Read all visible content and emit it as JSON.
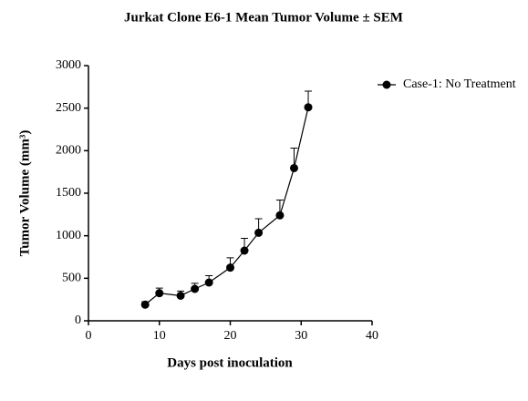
{
  "chart_data": {
    "type": "line",
    "title": "Jurkat Clone E6-1 Mean Tumor Volume ± SEM",
    "x_label": "Days post inoculation",
    "y_label": "Tumor Volume (mm³)",
    "x": [
      8,
      10,
      13,
      15,
      17,
      20,
      22,
      24,
      27,
      29,
      31
    ],
    "series": [
      {
        "name": "Case-1: No Treatment",
        "color": "#000000",
        "values": [
          190,
          325,
          295,
          375,
          450,
          625,
          825,
          1035,
          1240,
          1795,
          2510
        ],
        "errors": [
          35,
          60,
          55,
          65,
          80,
          115,
          145,
          165,
          180,
          235,
          190
        ]
      }
    ],
    "xlim": [
      0,
      40
    ],
    "xticks": [
      0,
      10,
      20,
      30,
      40
    ],
    "ylim": [
      0,
      3000
    ],
    "yticks": [
      0,
      500,
      1000,
      1500,
      2000,
      2500,
      3000
    ],
    "grid": false,
    "legend": "upper right"
  }
}
